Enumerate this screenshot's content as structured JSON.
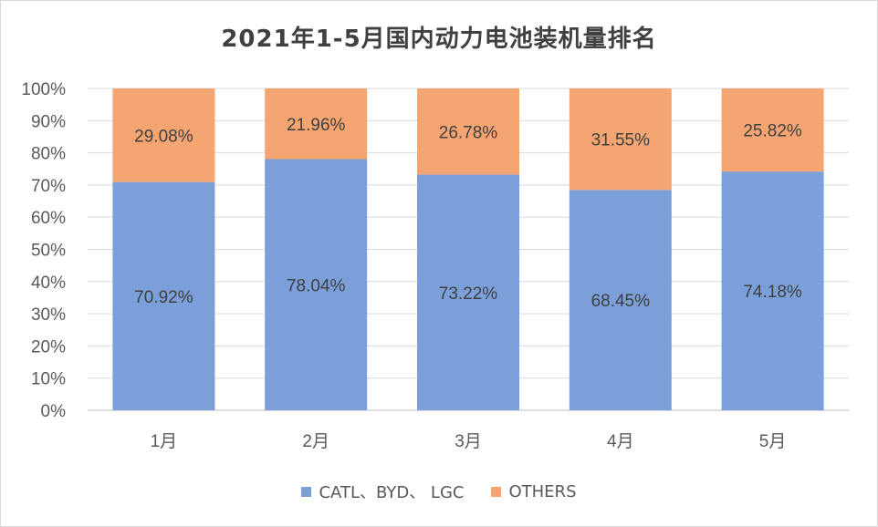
{
  "chart_data": {
    "type": "bar",
    "stacked": true,
    "title": "2021年1-5月国内动力电池装机量排名",
    "categories": [
      "1月",
      "2月",
      "3月",
      "4月",
      "5月"
    ],
    "series": [
      {
        "name": "CATL、BYD、 LGC",
        "color": "#7b9fd9",
        "values": [
          70.92,
          78.04,
          73.22,
          68.45,
          74.18
        ],
        "labels": [
          "70.92%",
          "78.04%",
          "73.22%",
          "68.45%",
          "74.18%"
        ]
      },
      {
        "name": "OTHERS",
        "color": "#f4a571",
        "values": [
          29.08,
          21.96,
          26.78,
          31.55,
          25.82
        ],
        "labels": [
          "29.08%",
          "21.96%",
          "26.78%",
          "31.55%",
          "25.82%"
        ]
      }
    ],
    "y_ticks": [
      "0%",
      "10%",
      "20%",
      "30%",
      "40%",
      "50%",
      "60%",
      "70%",
      "80%",
      "90%",
      "100%"
    ],
    "ylim": [
      0,
      100
    ],
    "grid": true,
    "legend_position": "bottom"
  }
}
